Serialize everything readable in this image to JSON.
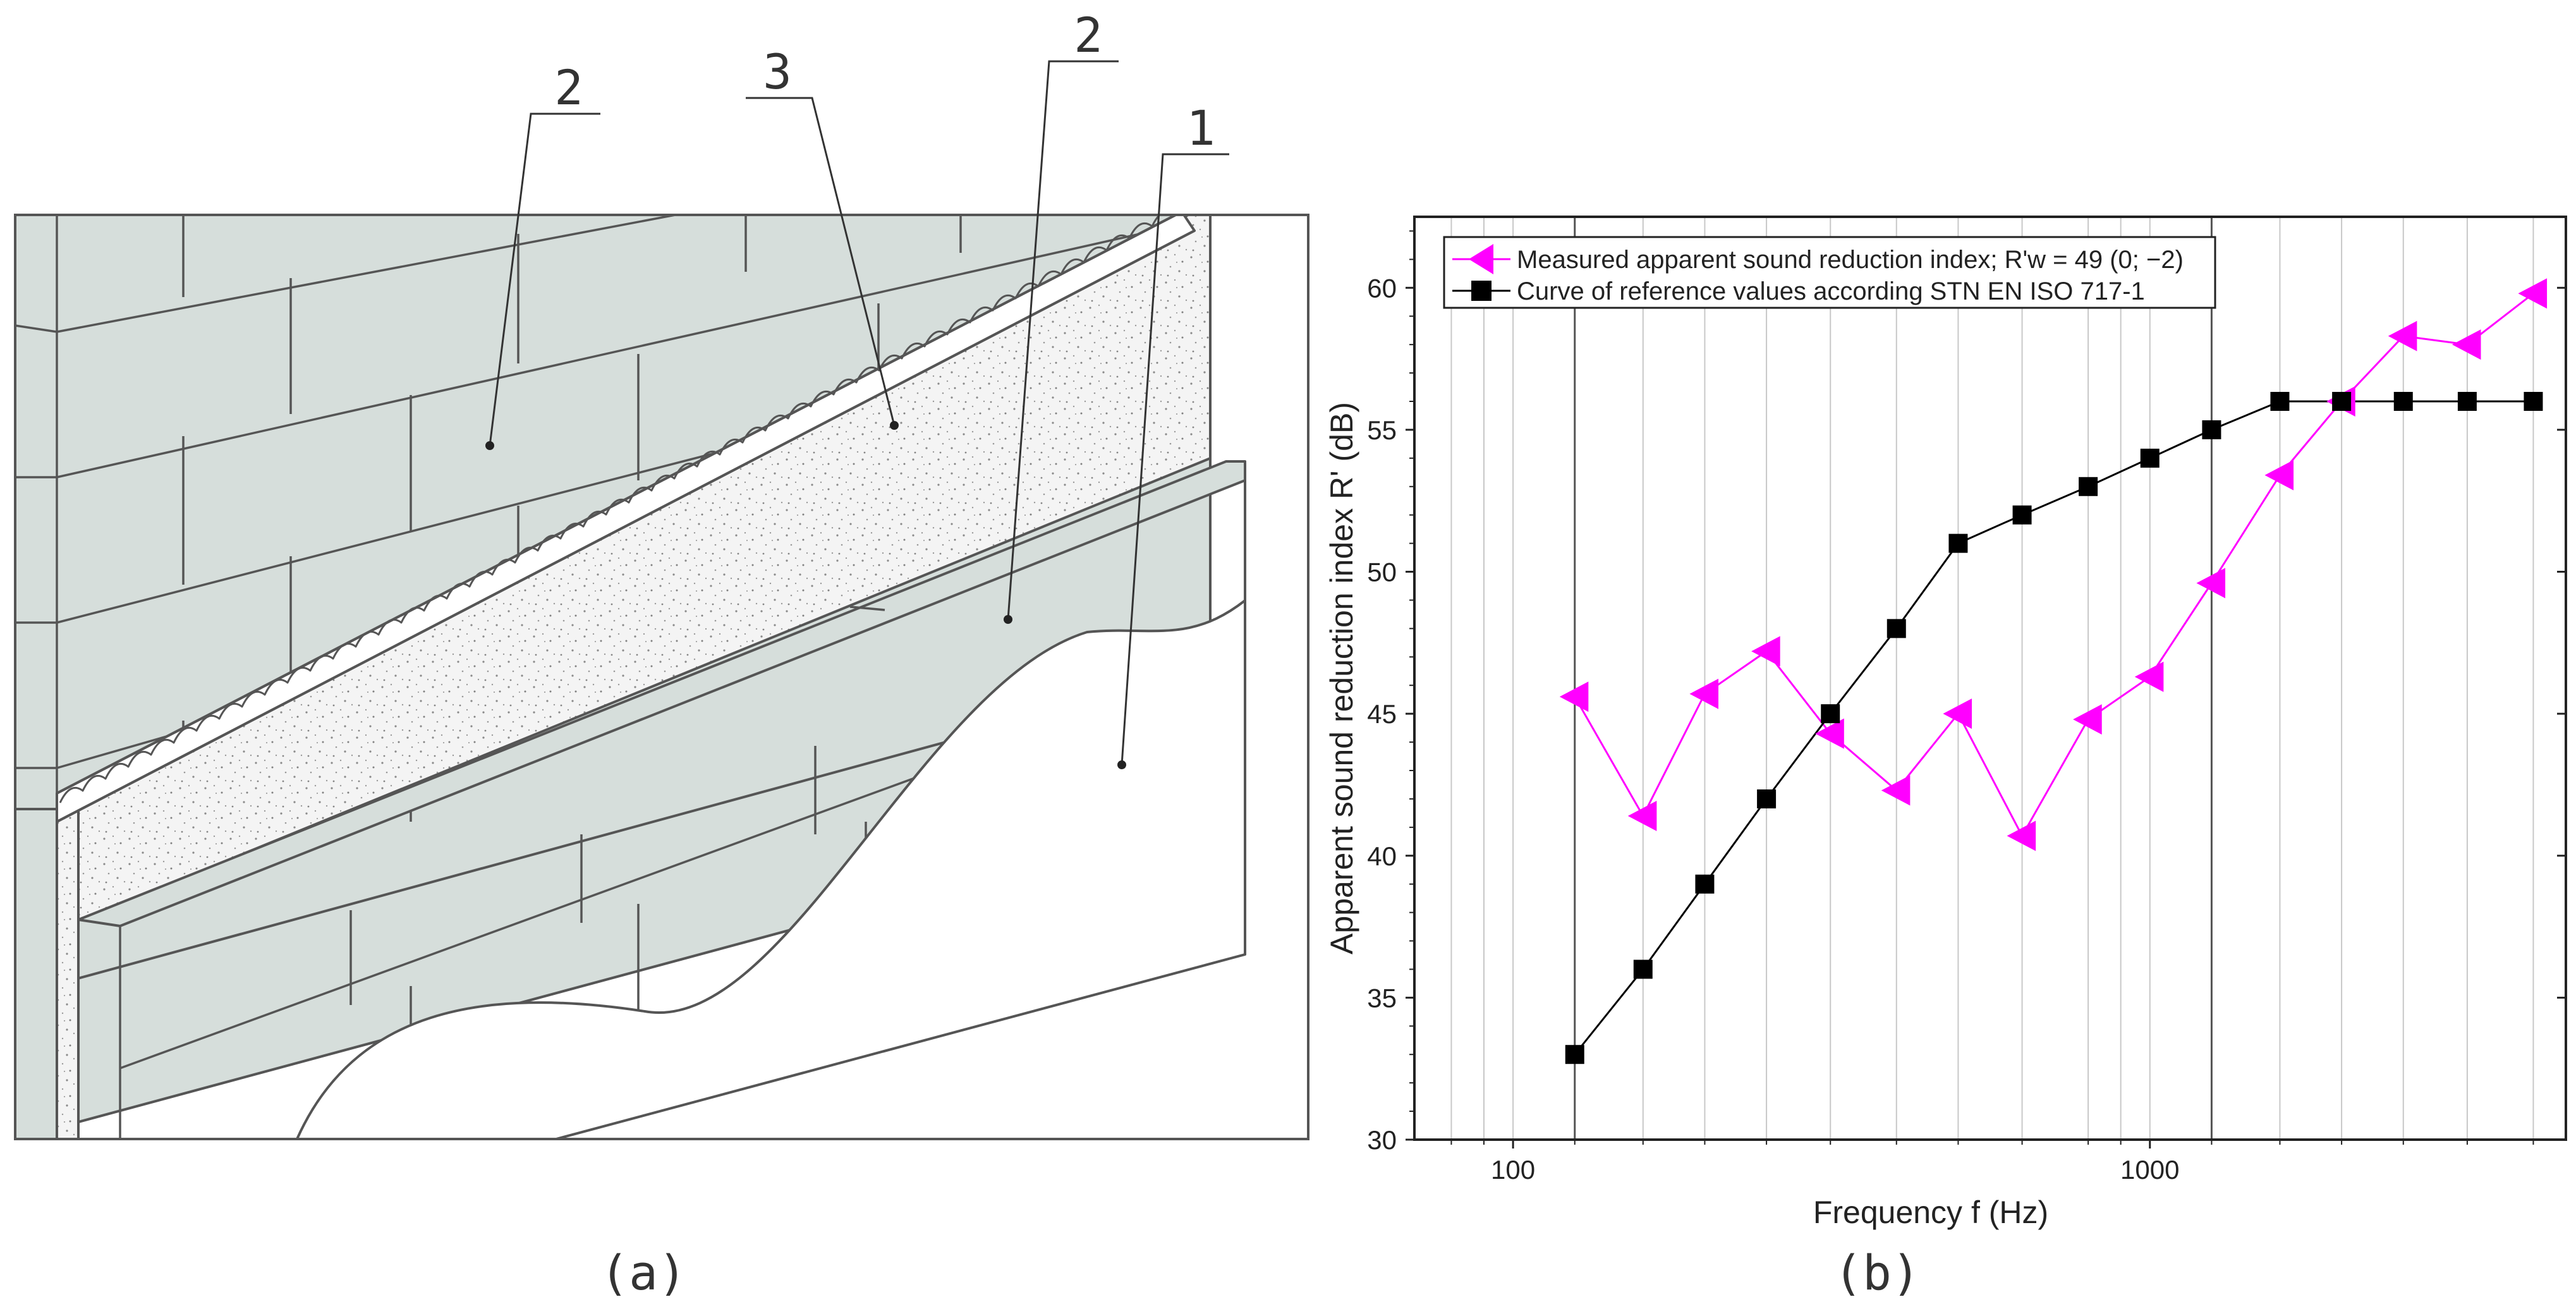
{
  "panel_a": {
    "callout_labels": [
      "2",
      "3",
      "2",
      "1"
    ],
    "caption": "(a)",
    "colors": {
      "block": "#d6dedb",
      "line": "#555555",
      "plaster": "#ffffff",
      "insulation": "#f3f3f3"
    }
  },
  "panel_b": {
    "caption": "(b)",
    "colors": {
      "measured": "#ff00ff",
      "reference": "#000000",
      "grid": "#c8c8c8"
    }
  },
  "chart_data": {
    "type": "line",
    "xlabel": "Frequency f (Hz)",
    "ylabel": "Apparent sound reduction index R' (dB)",
    "xscale": "log",
    "xlim": [
      70,
      4500
    ],
    "ylim": [
      30,
      62.5
    ],
    "xticks": [
      100,
      1000
    ],
    "xtick_labels": [
      "100",
      "1000"
    ],
    "yticks": [
      30,
      35,
      40,
      45,
      50,
      55,
      60
    ],
    "ytick_labels": [
      "30",
      "35",
      "40",
      "45",
      "50",
      "55",
      "60"
    ],
    "minor_gridlines_x": [
      80,
      90,
      100,
      125,
      160,
      200,
      250,
      315,
      400,
      500,
      630,
      800,
      900,
      1000,
      1250,
      1600,
      2000,
      2500,
      3150,
      4000
    ],
    "major_lines_x": [
      125,
      1250
    ],
    "legend_position": "top-left",
    "series": [
      {
        "name": "Measured apparent sound reduction index; R'w = 49 (0; −2)",
        "marker": "triangle-left",
        "x": [
          125,
          160,
          200,
          250,
          315,
          400,
          500,
          630,
          800,
          1000,
          1250,
          1600,
          2000,
          2500,
          3150,
          4000
        ],
        "values": [
          45.6,
          41.4,
          45.7,
          47.2,
          44.3,
          42.3,
          45.0,
          40.7,
          44.8,
          46.3,
          49.6,
          53.4,
          56.0,
          58.3,
          58.0,
          59.8
        ]
      },
      {
        "name": "Curve of reference values according STN EN ISO 717-1",
        "marker": "square",
        "x": [
          125,
          160,
          200,
          250,
          315,
          400,
          500,
          630,
          800,
          1000,
          1250,
          1600,
          2000,
          2500,
          3150,
          4000
        ],
        "values": [
          33,
          36,
          39,
          42,
          45,
          48,
          51,
          52,
          53,
          54,
          55,
          56,
          56,
          56,
          56,
          56
        ]
      }
    ]
  }
}
